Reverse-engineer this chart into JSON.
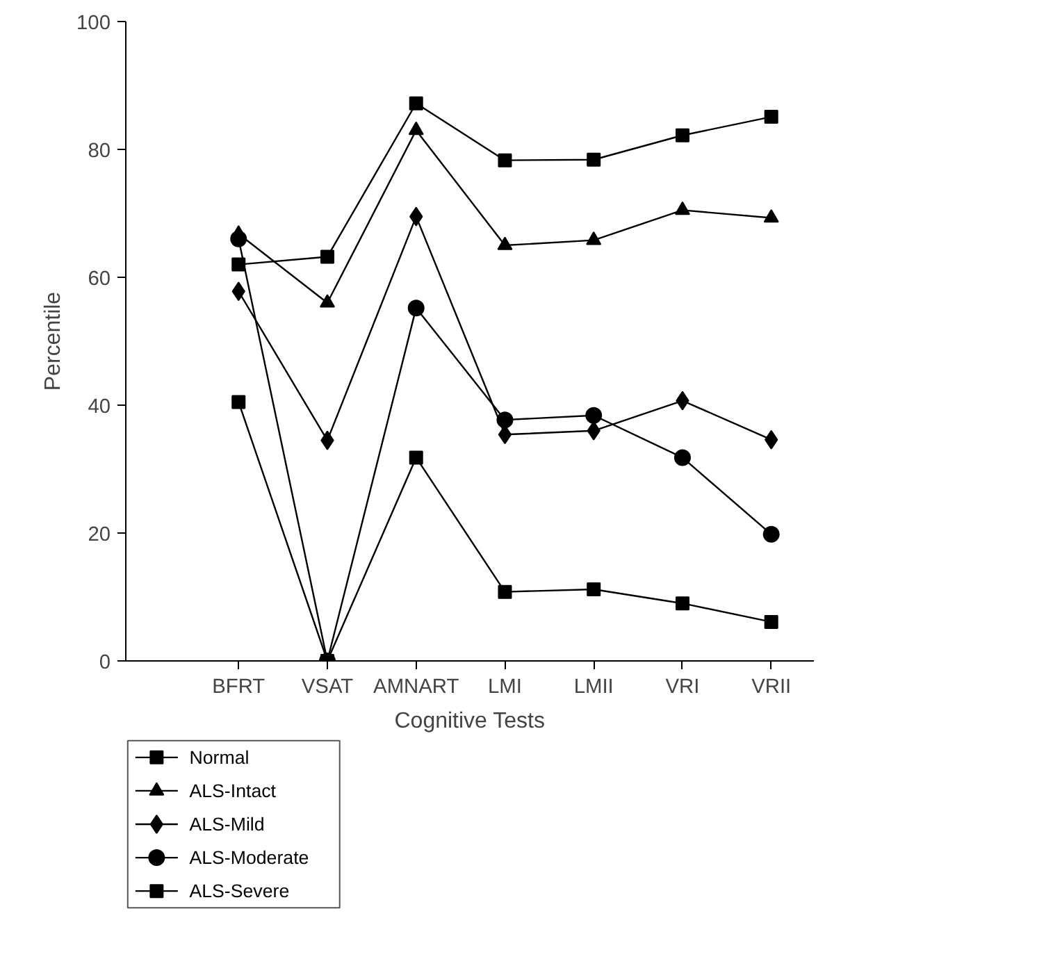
{
  "chart_data": {
    "type": "line",
    "xlabel": "Cognitive Tests",
    "ylabel": "Percentile",
    "categories": [
      "BFRT",
      "VSAT",
      "AMNART",
      "LMI",
      "LMII",
      "VRI",
      "VRII"
    ],
    "ylim": [
      0,
      100
    ],
    "yticks": [
      0,
      20,
      40,
      60,
      80,
      100
    ],
    "grid": false,
    "legend": "bottom left",
    "line_style": "solid",
    "series": [
      {
        "name": "Normal",
        "color": "#000000",
        "marker": "square",
        "values": [
          62,
          63.2,
          87.2,
          78.3,
          78.4,
          82.2,
          85.1
        ]
      },
      {
        "name": "ALS-Intact",
        "color": "#000000",
        "marker": "triangle",
        "values": [
          66.8,
          56,
          83,
          65,
          65.8,
          70.5,
          69.3
        ]
      },
      {
        "name": "ALS-Mild",
        "color": "#000000",
        "marker": "diamond",
        "values": [
          57.8,
          34.5,
          69.5,
          35.4,
          36,
          40.7,
          34.6
        ]
      },
      {
        "name": "ALS-Moderate",
        "color": "#000000",
        "marker": "circle",
        "values": [
          66,
          0,
          55.2,
          37.7,
          38.4,
          31.8,
          19.8
        ]
      },
      {
        "name": "ALS-Severe",
        "color": "#000000",
        "marker": "square",
        "values": [
          40.5,
          0,
          31.8,
          10.8,
          11.2,
          9,
          6.1
        ]
      }
    ]
  }
}
